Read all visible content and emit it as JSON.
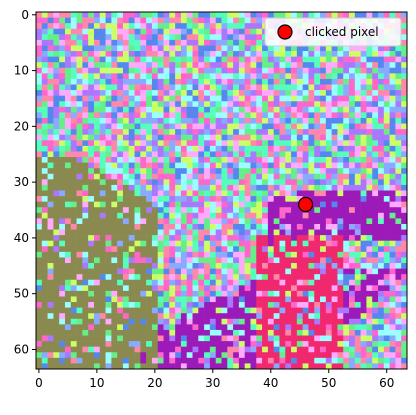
{
  "chart_data": {
    "type": "heatmap",
    "title": "",
    "xlabel": "",
    "ylabel": "",
    "xlim": [
      -0.5,
      63.5
    ],
    "ylim": [
      63.5,
      -0.5
    ],
    "x_ticks": [
      0,
      10,
      20,
      30,
      40,
      50,
      60
    ],
    "y_ticks": [
      0,
      10,
      20,
      30,
      40,
      50,
      60
    ],
    "image_grid": [
      64,
      64
    ],
    "grid": false,
    "legend_position": "top-right",
    "series": [
      {
        "name": "clicked pixel",
        "type": "scatter",
        "points": [
          {
            "x": 46,
            "y": 34
          }
        ],
        "color": "#ff0000",
        "edgecolor": "#000000"
      }
    ],
    "regions": [
      {
        "kind": "purple-arm",
        "color": "#9c1ab8",
        "cols": [
          17,
          63
        ],
        "rows": [
          32,
          63
        ]
      },
      {
        "kind": "pink-shirt",
        "color": "#f0286e",
        "cols": [
          38,
          52
        ],
        "rows": [
          40,
          63
        ]
      },
      {
        "kind": "olive-board",
        "color": "#8a8a50",
        "cols": [
          0,
          20
        ],
        "rows": [
          22,
          63
        ]
      }
    ],
    "palette": [
      "#88aaff",
      "#55ffbb",
      "#ff66cc",
      "#ccff66",
      "#5588ee",
      "#99ffff",
      "#ff88aa",
      "#aa77ff",
      "#66ee88",
      "#ffaaff"
    ]
  }
}
